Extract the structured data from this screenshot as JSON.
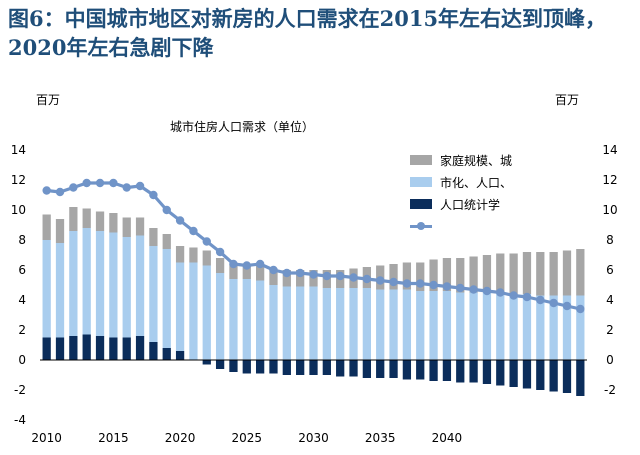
{
  "figure": {
    "title": "图6：中国城市地区对新房的人口需求在2015年左右达到顶峰，2020年左右急剧下降"
  },
  "chart_data": {
    "type": "bar",
    "title": "城市住房人口需求（单位）",
    "unit_left": "百万",
    "unit_right": "百万",
    "ylim": [
      -4,
      14
    ],
    "yticks": [
      -4,
      -2,
      0,
      2,
      4,
      6,
      8,
      10,
      12,
      14
    ],
    "yticks_right": [
      -2,
      0,
      2,
      4,
      6,
      8,
      10,
      12,
      14
    ],
    "x_start": 2010,
    "x_end": 2050,
    "xticks": [
      2010,
      2015,
      2020,
      2025,
      2030,
      2035,
      2040
    ],
    "legend_position": "upper-right",
    "colors": {
      "household": "#a6a6a6",
      "urbanization": "#a9cdee",
      "population": "#0b2d5b",
      "total": "#7094c8"
    },
    "series": [
      {
        "name": "家庭规模、城",
        "color": "#a6a6a6",
        "values": [
          1.7,
          1.6,
          1.6,
          1.3,
          1.3,
          1.3,
          1.3,
          1.2,
          1.2,
          1.0,
          1.1,
          1.0,
          1.0,
          1.0,
          1.0,
          1.0,
          1.1,
          1.1,
          1.1,
          1.1,
          1.1,
          1.2,
          1.2,
          1.3,
          1.4,
          1.6,
          1.7,
          1.8,
          1.9,
          2.1,
          2.2,
          2.3,
          2.4,
          2.5,
          2.6,
          2.7,
          2.8,
          2.9,
          2.9,
          3.0,
          3.1
        ]
      },
      {
        "name": "市化、人口、",
        "color": "#a9cdee",
        "values": [
          6.5,
          6.3,
          7.0,
          7.1,
          7.0,
          7.0,
          6.7,
          6.7,
          6.4,
          6.6,
          5.9,
          6.5,
          6.3,
          5.8,
          5.4,
          5.4,
          5.3,
          5.0,
          4.9,
          4.9,
          4.9,
          4.8,
          4.8,
          4.8,
          4.8,
          4.7,
          4.7,
          4.7,
          4.6,
          4.6,
          4.6,
          4.5,
          4.5,
          4.5,
          4.5,
          4.4,
          4.4,
          4.3,
          4.3,
          4.3,
          4.3
        ]
      },
      {
        "name": "人口统计学",
        "color": "#0b2d5b",
        "values": [
          1.5,
          1.5,
          1.6,
          1.7,
          1.6,
          1.5,
          1.5,
          1.6,
          1.2,
          0.8,
          0.6,
          0.0,
          -0.3,
          -0.6,
          -0.8,
          -0.9,
          -0.9,
          -0.9,
          -1.0,
          -1.0,
          -1.0,
          -1.0,
          -1.1,
          -1.1,
          -1.2,
          -1.2,
          -1.2,
          -1.3,
          -1.3,
          -1.4,
          -1.4,
          -1.5,
          -1.5,
          -1.6,
          -1.7,
          -1.8,
          -1.9,
          -2.0,
          -2.1,
          -2.2,
          -2.4
        ]
      },
      {
        "name": "",
        "color": "#7094c8",
        "type": "line",
        "values": [
          11.3,
          11.2,
          11.5,
          11.8,
          11.8,
          11.8,
          11.5,
          11.6,
          11.0,
          10.0,
          9.3,
          8.6,
          7.9,
          7.2,
          6.4,
          6.3,
          6.4,
          6.0,
          5.8,
          5.8,
          5.7,
          5.6,
          5.6,
          5.5,
          5.4,
          5.3,
          5.2,
          5.1,
          5.1,
          5.0,
          4.9,
          4.8,
          4.7,
          4.6,
          4.5,
          4.3,
          4.2,
          4.0,
          3.8,
          3.6,
          3.4
        ]
      }
    ]
  }
}
